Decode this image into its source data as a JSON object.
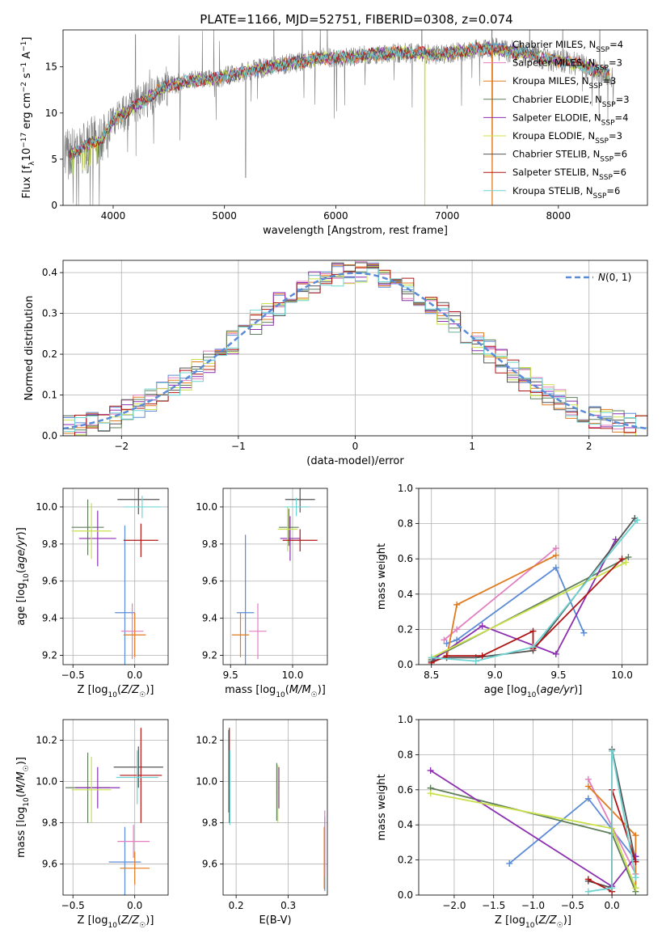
{
  "title": "PLATE=1166, MJD=52751, FIBERID=0308, z=0.074",
  "colors": {
    "Chabrier MILES": "#5b8bd6",
    "Salpeter MILES": "#e27fc0",
    "Kroupa MILES": "#e07b1f",
    "Chabrier ELODIE": "#5f7f5a",
    "Salpeter ELODIE": "#8b2fb0",
    "Kroupa ELODIE": "#c9e04a",
    "Chabrier STELIB": "#555555",
    "Salpeter STELIB": "#b01515",
    "Kroupa STELIB": "#6fd4d4",
    "data": "#808080",
    "gauss": "#5b8bd6"
  },
  "chart_data": [
    {
      "id": "spectrum",
      "type": "line",
      "xlabel": "wavelength [Angstrom, rest frame]",
      "ylabel": "Flux [f_λ 10^-17 erg cm^-2 s^-1 A^-1]",
      "xlim": [
        3550,
        8800
      ],
      "ylim": [
        0,
        19
      ],
      "xticks": [
        4000,
        5000,
        6000,
        7000,
        8000
      ],
      "yticks": [
        0,
        5,
        10,
        15
      ],
      "legend_position": "upper right",
      "continuum": {
        "x": [
          3560,
          3600,
          3700,
          3800,
          3900,
          4000,
          4100,
          4200,
          4300,
          4400,
          4500,
          4700,
          4900,
          5100,
          5300,
          5500,
          5700,
          5900,
          6100,
          6300,
          6500,
          6700,
          6900,
          7100,
          7300,
          7500,
          7700,
          7900,
          8100,
          8300,
          8500
        ],
        "y": [
          5.5,
          5.5,
          6.0,
          6.8,
          7.2,
          9.2,
          10.0,
          10.8,
          11.5,
          12.3,
          13.0,
          13.5,
          13.7,
          14.2,
          14.8,
          15.2,
          15.6,
          16.0,
          16.0,
          16.3,
          16.5,
          16.5,
          16.3,
          16.6,
          17.0,
          16.8,
          16.5,
          15.8,
          15.5,
          14.8,
          14.0
        ]
      },
      "series": [
        {
          "name": "Chabrier MILES",
          "nssp": "4"
        },
        {
          "name": "Salpeter MILES",
          "nssp": "3"
        },
        {
          "name": "Kroupa MILES",
          "nssp": "3"
        },
        {
          "name": "Chabrier ELODIE",
          "nssp": "3"
        },
        {
          "name": "Salpeter ELODIE",
          "nssp": "4"
        },
        {
          "name": "Kroupa ELODIE",
          "nssp": "3"
        },
        {
          "name": "Chabrier STELIB",
          "nssp": "6"
        },
        {
          "name": "Salpeter STELIB",
          "nssp": "6"
        },
        {
          "name": "Kroupa STELIB",
          "nssp": "6"
        }
      ]
    },
    {
      "id": "residuals",
      "type": "line",
      "xlabel": "(data-model)/error",
      "ylabel": "Normed distribution",
      "xlim": [
        -2.5,
        2.5
      ],
      "ylim": [
        0,
        0.43
      ],
      "xticks": [
        -2,
        -1,
        0,
        1,
        2
      ],
      "yticks": [
        0.0,
        0.1,
        0.2,
        0.3,
        0.4
      ],
      "legend": [
        "N(0,1)"
      ],
      "bin_width": 0.1
    },
    {
      "id": "age_vs_Z",
      "type": "scatter",
      "xlabel": "Z [log10(Z/Z☉)]",
      "ylabel": "age [log10(age/yr)]",
      "xlim": [
        -0.58,
        0.27
      ],
      "ylim": [
        9.15,
        10.1
      ],
      "xticks": [
        -0.5,
        0.0
      ],
      "yticks": [
        9.2,
        9.4,
        9.6,
        9.8,
        10.0
      ],
      "points": [
        {
          "series": "Chabrier MILES",
          "x": -0.08,
          "y": 9.43,
          "xerr": 0.08,
          "yerr": 0.47
        },
        {
          "series": "Salpeter MILES",
          "x": -0.02,
          "y": 9.33,
          "xerr": 0.09,
          "yerr": 0.15
        },
        {
          "series": "Kroupa MILES",
          "x": 0.0,
          "y": 9.31,
          "xerr": 0.09,
          "yerr": 0.12
        },
        {
          "series": "Chabrier ELODIE",
          "x": -0.38,
          "y": 9.89,
          "xerr": 0.13,
          "yerr": 0.15
        },
        {
          "series": "Salpeter ELODIE",
          "x": -0.3,
          "y": 9.83,
          "xerr": 0.15,
          "yerr": 0.15
        },
        {
          "series": "Kroupa ELODIE",
          "x": -0.35,
          "y": 9.87,
          "xerr": 0.16,
          "yerr": 0.15
        },
        {
          "series": "Chabrier STELIB",
          "x": 0.03,
          "y": 10.04,
          "xerr": 0.17,
          "yerr": 0.08
        },
        {
          "series": "Salpeter STELIB",
          "x": 0.05,
          "y": 9.82,
          "xerr": 0.14,
          "yerr": 0.09
        },
        {
          "series": "Kroupa STELIB",
          "x": 0.06,
          "y": 10.0,
          "xerr": 0.15,
          "yerr": 0.06
        }
      ]
    },
    {
      "id": "age_vs_mass",
      "type": "scatter",
      "xlabel": "mass [log10(M/M☉)]",
      "ylabel": "",
      "xlim": [
        9.44,
        10.28
      ],
      "ylim": [
        9.15,
        10.1
      ],
      "xticks": [
        9.5,
        10.0
      ],
      "yticks": [
        9.2,
        9.4,
        9.6,
        9.8,
        10.0
      ],
      "points": [
        {
          "series": "Chabrier MILES",
          "x": 9.62,
          "y": 9.43,
          "xerr": 0.07,
          "yerr": 0.42
        },
        {
          "series": "Salpeter MILES",
          "x": 9.72,
          "y": 9.33,
          "xerr": 0.07,
          "yerr": 0.15
        },
        {
          "series": "Kroupa MILES",
          "x": 9.58,
          "y": 9.31,
          "xerr": 0.07,
          "yerr": 0.12
        },
        {
          "series": "Chabrier ELODIE",
          "x": 9.97,
          "y": 9.89,
          "xerr": 0.08,
          "yerr": 0.1
        },
        {
          "series": "Salpeter ELODIE",
          "x": 9.98,
          "y": 9.83,
          "xerr": 0.08,
          "yerr": 0.12
        },
        {
          "series": "Kroupa ELODIE",
          "x": 9.96,
          "y": 9.88,
          "xerr": 0.08,
          "yerr": 0.12
        },
        {
          "series": "Chabrier STELIB",
          "x": 10.06,
          "y": 10.04,
          "xerr": 0.12,
          "yerr": 0.07
        },
        {
          "series": "Salpeter STELIB",
          "x": 10.06,
          "y": 9.82,
          "xerr": 0.14,
          "yerr": 0.06
        },
        {
          "series": "Kroupa STELIB",
          "x": 10.03,
          "y": 10.0,
          "xerr": 0.1,
          "yerr": 0.05
        }
      ]
    },
    {
      "id": "weight_vs_age",
      "type": "line",
      "xlabel": "age [log10(age/yr)]",
      "ylabel": "mass weight",
      "xlim": [
        8.4,
        10.2
      ],
      "ylim": [
        0,
        1.0
      ],
      "xticks": [
        8.5,
        9.0,
        9.5,
        10.0
      ],
      "yticks": [
        0.0,
        0.2,
        0.4,
        0.6,
        0.8,
        1.0
      ],
      "series": [
        {
          "name": "Chabrier MILES",
          "x": [
            8.62,
            8.7,
            9.48,
            9.7
          ],
          "y": [
            0.12,
            0.14,
            0.55,
            0.18
          ]
        },
        {
          "name": "Salpeter MILES",
          "x": [
            8.6,
            8.7,
            9.48
          ],
          "y": [
            0.14,
            0.2,
            0.66
          ]
        },
        {
          "name": "Kroupa MILES",
          "x": [
            8.62,
            8.7,
            9.48
          ],
          "y": [
            0.04,
            0.34,
            0.62
          ]
        },
        {
          "name": "Chabrier ELODIE",
          "x": [
            8.5,
            10.05
          ],
          "y": [
            0.03,
            0.61
          ]
        },
        {
          "name": "Salpeter ELODIE",
          "x": [
            8.5,
            8.9,
            9.48,
            9.95
          ],
          "y": [
            0.02,
            0.22,
            0.06,
            0.71
          ]
        },
        {
          "name": "Kroupa ELODIE",
          "x": [
            8.5,
            10.03
          ],
          "y": [
            0.04,
            0.58
          ]
        },
        {
          "name": "Chabrier STELIB",
          "x": [
            8.5,
            8.62,
            8.85,
            9.3,
            10.1
          ],
          "y": [
            0.02,
            0.04,
            0.04,
            0.08,
            0.83
          ]
        },
        {
          "name": "Salpeter STELIB",
          "x": [
            8.5,
            8.62,
            8.9,
            9.3,
            9.3,
            10.0
          ],
          "y": [
            0.01,
            0.05,
            0.05,
            0.19,
            0.09,
            0.6
          ]
        },
        {
          "name": "Kroupa STELIB",
          "x": [
            8.5,
            8.85,
            9.3,
            10.12
          ],
          "y": [
            0.04,
            0.02,
            0.1,
            0.82
          ]
        }
      ]
    },
    {
      "id": "mass_vs_Z",
      "type": "scatter",
      "xlabel": "Z [log10(Z/Z☉)]",
      "ylabel": "mass [log10(M/M☉)]",
      "xlim": [
        -0.58,
        0.27
      ],
      "ylim": [
        9.45,
        10.3
      ],
      "xticks": [
        -0.5,
        0.0
      ],
      "yticks": [
        9.6,
        9.8,
        10.0,
        10.2
      ],
      "points": [
        {
          "series": "Chabrier MILES",
          "x": -0.08,
          "y": 9.61,
          "xerr": 0.13,
          "yerr": 0.17
        },
        {
          "series": "Salpeter MILES",
          "x": -0.01,
          "y": 9.71,
          "xerr": 0.13,
          "yerr": 0.08
        },
        {
          "series": "Kroupa MILES",
          "x": 0.0,
          "y": 9.58,
          "xerr": 0.12,
          "yerr": 0.08
        },
        {
          "series": "Chabrier ELODIE",
          "x": -0.38,
          "y": 9.97,
          "xerr": 0.18,
          "yerr": 0.17
        },
        {
          "series": "Salpeter ELODIE",
          "x": -0.3,
          "y": 9.97,
          "xerr": 0.18,
          "yerr": 0.1
        },
        {
          "series": "Kroupa ELODIE",
          "x": -0.35,
          "y": 9.96,
          "xerr": 0.16,
          "yerr": 0.16
        },
        {
          "series": "Chabrier STELIB",
          "x": 0.03,
          "y": 10.07,
          "xerr": 0.2,
          "yerr": 0.1
        },
        {
          "series": "Salpeter STELIB",
          "x": 0.05,
          "y": 10.03,
          "xerr": 0.17,
          "yerr": 0.23
        },
        {
          "series": "Kroupa STELIB",
          "x": 0.02,
          "y": 10.02,
          "xerr": 0.17,
          "yerr": 0.13
        }
      ]
    },
    {
      "id": "mass_vs_EBV",
      "type": "scatter",
      "xlabel": "E(B-V)",
      "ylabel": "",
      "xlim": [
        0.175,
        0.375
      ],
      "ylim": [
        9.45,
        10.3
      ],
      "xticks": [
        0.2,
        0.3
      ],
      "yticks": [
        9.6,
        9.8,
        10.0,
        10.2
      ],
      "points": [
        {
          "series": "Chabrier MILES",
          "x": 0.37,
          "y": 9.65,
          "xerr": 0.001,
          "yerr": 0.18
        },
        {
          "series": "Salpeter MILES",
          "x": 0.37,
          "y": 9.7,
          "xerr": 0.001,
          "yerr": 0.16
        },
        {
          "series": "Kroupa MILES",
          "x": 0.369,
          "y": 9.63,
          "xerr": 0.001,
          "yerr": 0.15
        },
        {
          "series": "Chabrier ELODIE",
          "x": 0.278,
          "y": 9.95,
          "xerr": 0.001,
          "yerr": 0.14
        },
        {
          "series": "Salpeter ELODIE",
          "x": 0.282,
          "y": 9.97,
          "xerr": 0.001,
          "yerr": 0.1
        },
        {
          "series": "Kroupa ELODIE",
          "x": 0.28,
          "y": 9.94,
          "xerr": 0.001,
          "yerr": 0.14
        },
        {
          "series": "Chabrier STELIB",
          "x": 0.186,
          "y": 10.05,
          "xerr": 0.001,
          "yerr": 0.2
        },
        {
          "series": "Salpeter STELIB",
          "x": 0.187,
          "y": 10.03,
          "xerr": 0.001,
          "yerr": 0.23
        },
        {
          "series": "Kroupa STELIB",
          "x": 0.188,
          "y": 9.97,
          "xerr": 0.001,
          "yerr": 0.18
        }
      ]
    },
    {
      "id": "weight_vs_Z",
      "type": "line",
      "xlabel": "Z [log10(Z/Z☉)]",
      "ylabel": "mass weight",
      "xlim": [
        -2.45,
        0.45
      ],
      "ylim": [
        0,
        1.0
      ],
      "xticks": [
        -2.0,
        -1.5,
        -1.0,
        -0.5,
        0.0
      ],
      "yticks": [
        0.0,
        0.2,
        0.4,
        0.6,
        0.8,
        1.0
      ],
      "series": [
        {
          "name": "Chabrier MILES",
          "x": [
            -1.3,
            -0.3,
            0.3
          ],
          "y": [
            0.18,
            0.55,
            0.2
          ]
        },
        {
          "name": "Salpeter MILES",
          "x": [
            -0.3,
            0.3
          ],
          "y": [
            0.66,
            0.12
          ]
        },
        {
          "name": "Kroupa MILES",
          "x": [
            -0.3,
            0.3,
            0.3
          ],
          "y": [
            0.62,
            0.34,
            0.04
          ]
        },
        {
          "name": "Chabrier ELODIE",
          "x": [
            -2.3,
            0.0,
            0.3
          ],
          "y": [
            0.61,
            0.35,
            0.02
          ]
        },
        {
          "name": "Salpeter ELODIE",
          "x": [
            -2.3,
            0.0,
            0.3
          ],
          "y": [
            0.71,
            0.05,
            0.22
          ]
        },
        {
          "name": "Kroupa ELODIE",
          "x": [
            -2.3,
            0.0,
            0.3
          ],
          "y": [
            0.58,
            0.38,
            0.04
          ]
        },
        {
          "name": "Chabrier STELIB",
          "x": [
            -0.3,
            0.0,
            0.0,
            0.3
          ],
          "y": [
            0.08,
            0.04,
            0.83,
            0.19
          ]
        },
        {
          "name": "Salpeter STELIB",
          "x": [
            -0.3,
            0.0,
            0.0,
            0.3
          ],
          "y": [
            0.09,
            0.02,
            0.6,
            0.19
          ]
        },
        {
          "name": "Kroupa STELIB",
          "x": [
            -0.3,
            0.0,
            0.0,
            0.3
          ],
          "y": [
            0.02,
            0.04,
            0.82,
            0.1
          ]
        }
      ]
    }
  ]
}
